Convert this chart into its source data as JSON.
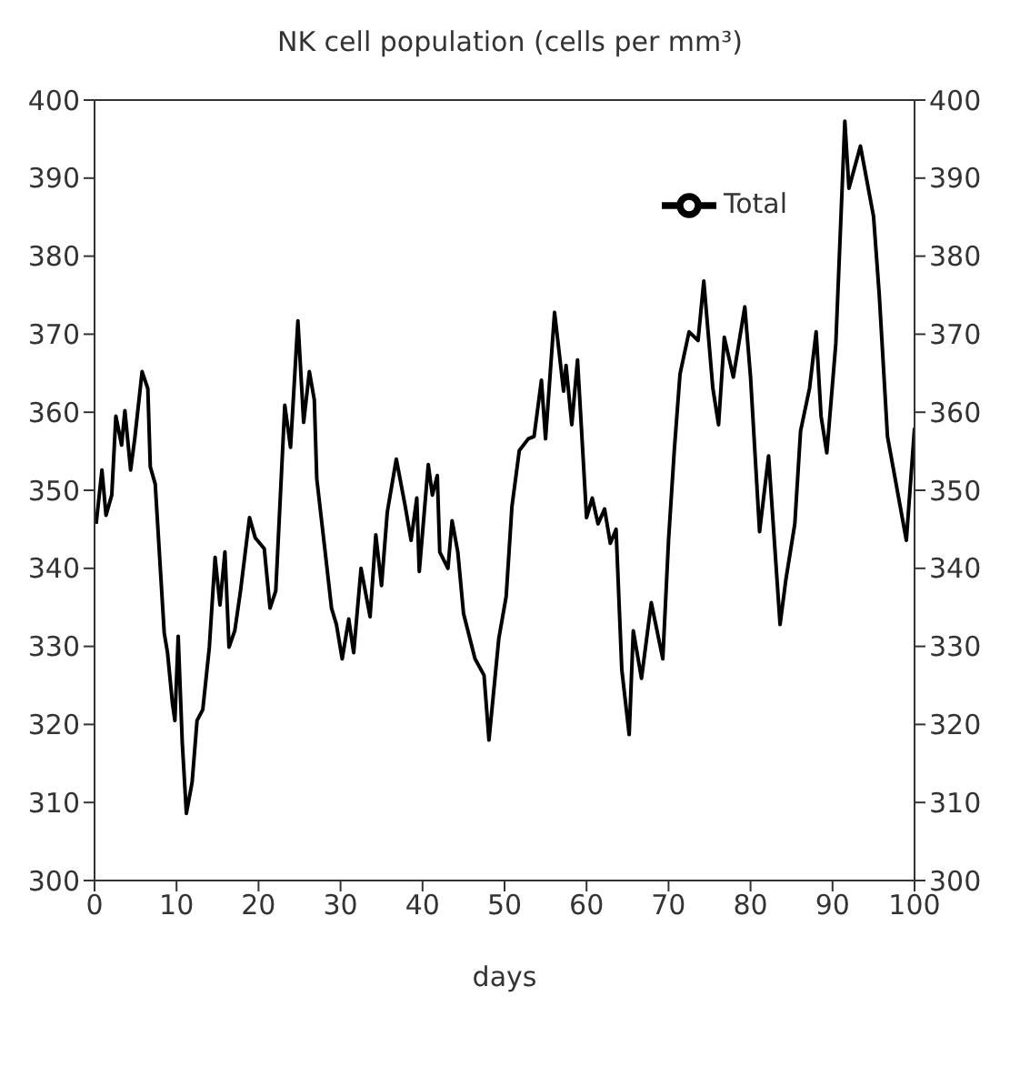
{
  "chart_data": {
    "type": "line",
    "title": "NK cell population (cells per mm³)",
    "xlabel": "days",
    "xlim": [
      0,
      100
    ],
    "xticks": [
      0,
      10,
      20,
      30,
      40,
      50,
      60,
      70,
      80,
      90,
      100
    ],
    "ylim": [
      300,
      400
    ],
    "yticks": [
      300,
      310,
      320,
      330,
      340,
      350,
      360,
      370,
      380,
      390,
      400
    ],
    "y2lim": [
      300,
      400
    ],
    "y2ticks": [
      300,
      310,
      320,
      330,
      340,
      350,
      360,
      370,
      380,
      390,
      400
    ],
    "x": [
      0.2,
      0.9,
      1.4,
      2.1,
      2.6,
      3.3,
      3.7,
      4.4,
      4.9,
      5.8,
      6.5,
      6.8,
      7.4,
      8.5,
      8.9,
      9.5,
      9.8,
      10.2,
      10.7,
      11.2,
      11.9,
      12.5,
      13.2,
      14.0,
      14.7,
      15.3,
      15.9,
      16.4,
      17.1,
      17.8,
      18.9,
      19.6,
      20.7,
      21.4,
      22.1,
      23.2,
      23.9,
      24.8,
      25.5,
      26.2,
      26.8,
      27.1,
      28.2,
      28.9,
      29.5,
      30.2,
      31.0,
      31.6,
      32.5,
      33.6,
      34.3,
      35.0,
      35.7,
      36.8,
      37.9,
      38.6,
      39.3,
      39.6,
      40.7,
      41.2,
      41.8,
      42.1,
      43.1,
      43.6,
      44.3,
      45.0,
      46.4,
      47.5,
      48.1,
      49.3,
      50.2,
      50.9,
      51.8,
      52.9,
      53.6,
      54.5,
      55.0,
      56.1,
      57.2,
      57.5,
      58.2,
      58.9,
      60.0,
      60.7,
      61.4,
      62.2,
      62.9,
      63.6,
      64.3,
      65.2,
      65.7,
      66.7,
      67.9,
      69.3,
      70.0,
      70.7,
      71.4,
      72.5,
      73.6,
      74.3,
      75.4,
      76.1,
      76.8,
      77.9,
      79.3,
      80.0,
      81.1,
      82.2,
      83.6,
      84.3,
      85.4,
      86.1,
      87.2,
      88.0,
      88.6,
      89.3,
      90.4,
      91.5,
      92.0,
      93.4,
      95.0,
      95.7,
      96.7,
      99.0,
      100
    ],
    "series": [
      {
        "name": "Total",
        "color": "#000000",
        "values": [
          345.7,
          352.6,
          346.8,
          349.4,
          359.5,
          355.8,
          360.2,
          352.6,
          356.6,
          365.2,
          363,
          353,
          350.8,
          331.7,
          329.2,
          322.7,
          320.5,
          331.3,
          317.6,
          308.6,
          312.6,
          320.5,
          321.9,
          329.9,
          341.4,
          335.3,
          342.1,
          329.9,
          332,
          337.1,
          346.5,
          343.9,
          342.5,
          334.9,
          337.1,
          360.9,
          355.5,
          371.7,
          358.7,
          365.2,
          361.6,
          351.5,
          341.4,
          334.9,
          332.8,
          328.4,
          333.5,
          329.2,
          340,
          333.8,
          344.3,
          337.8,
          347.2,
          354,
          347.9,
          343.6,
          349,
          339.6,
          353.3,
          349.4,
          351.9,
          342.1,
          340,
          346.1,
          342.1,
          334.2,
          328.4,
          326.3,
          318,
          331,
          336.4,
          347.9,
          355.1,
          356.6,
          356.9,
          364.1,
          356.6,
          372.8,
          362.7,
          366,
          358.4,
          366.7,
          346.5,
          349,
          345.7,
          347.6,
          343.2,
          345,
          327,
          318.7,
          332,
          325.9,
          335.6,
          328.4,
          343.6,
          355.1,
          364.9,
          370.3,
          369.2,
          376.8,
          363.1,
          358.4,
          369.6,
          364.5,
          373.5,
          364.5,
          344.7,
          354.4,
          332.8,
          338.5,
          345.7,
          357.6,
          363.1,
          370.3,
          359.5,
          354.8,
          368.8,
          397.3,
          388.7,
          394.1,
          385.1,
          375,
          356.9,
          343.6,
          358
        ]
      }
    ],
    "legend": "top right",
    "marker": "none",
    "line_style": "solid",
    "grid": false
  }
}
